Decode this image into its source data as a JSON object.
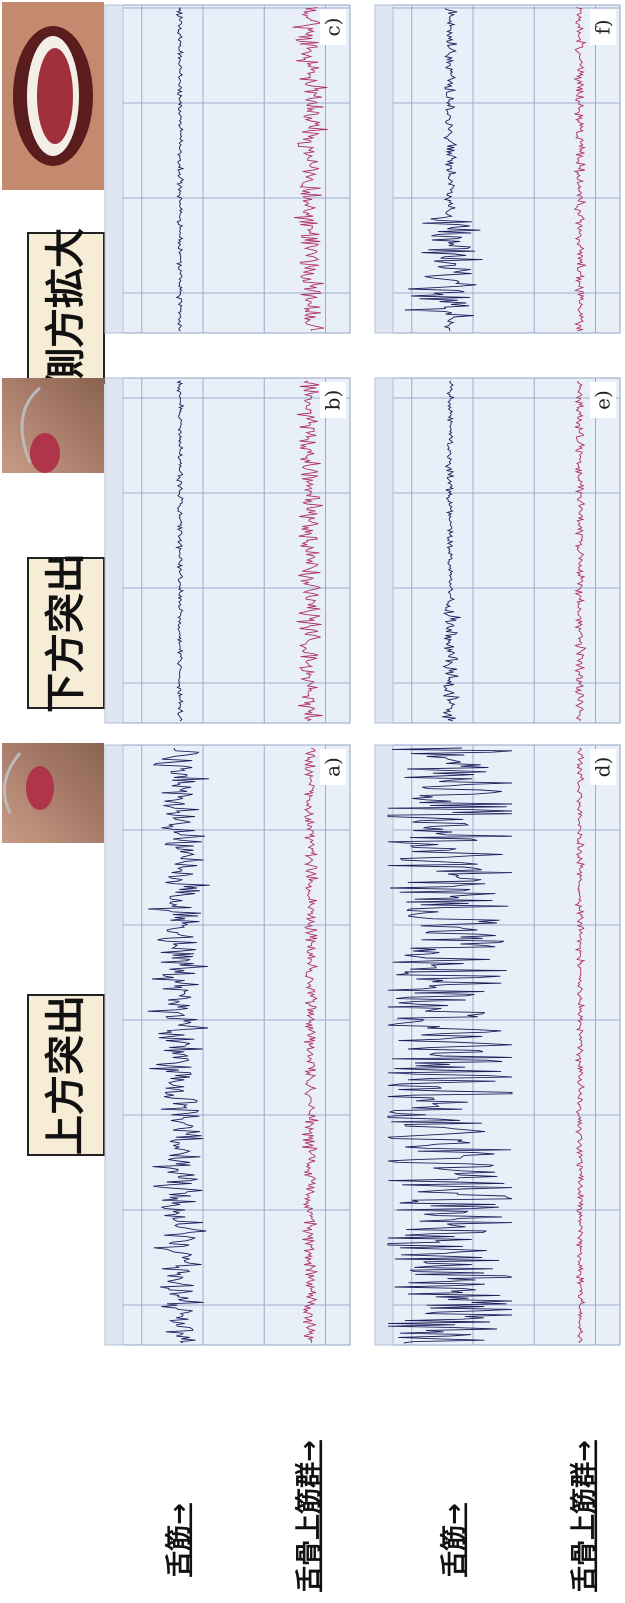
{
  "header": {
    "conditions": [
      "上方突出",
      "下方突出",
      "側方拡大"
    ]
  },
  "rows": [
    {
      "labels": [
        "舌筋→",
        "舌骨上筋群→"
      ]
    },
    {
      "labels": [
        "舌筋→",
        "舌骨上筋群→"
      ]
    }
  ],
  "panels": [
    "a)",
    "b)",
    "c)",
    "d)",
    "e)",
    "f)"
  ]
}
